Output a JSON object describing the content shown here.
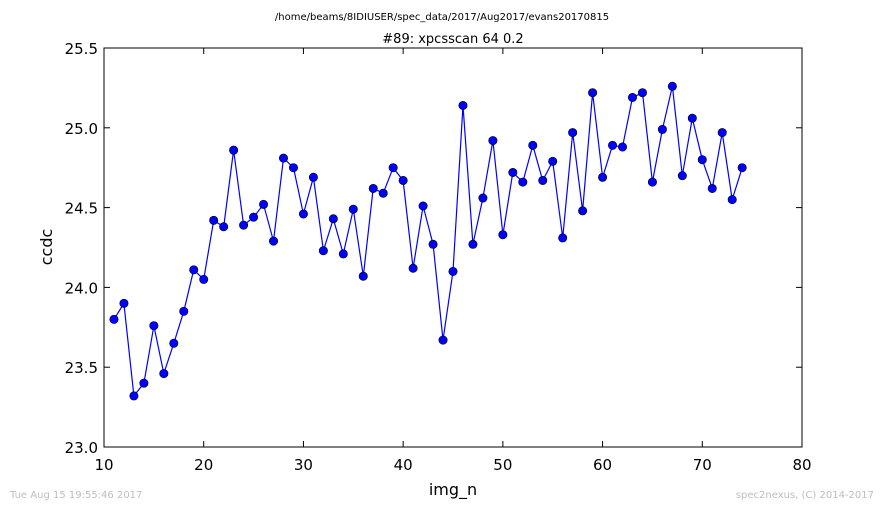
{
  "header": {
    "path": "/home/beams/8IDIUSER/spec_data/2017/Aug2017/evans20170815"
  },
  "footer": {
    "timestamp": "Tue Aug 15 19:55:46 2017",
    "credit": "spec2nexus, (C) 2014-2017"
  },
  "chart_data": {
    "type": "line",
    "title": "#89: xpcsscan 64 0.2",
    "xlabel": "img_n",
    "ylabel": "ccdc",
    "xlim": [
      10,
      80
    ],
    "ylim": [
      23.0,
      25.5
    ],
    "xticks": [
      "10",
      "20",
      "30",
      "40",
      "50",
      "60",
      "70",
      "80"
    ],
    "yticks": [
      "23.0",
      "23.5",
      "24.0",
      "24.5",
      "25.0",
      "25.5"
    ],
    "grid": false,
    "line_color": "#0000ff",
    "marker": "circle",
    "x": [
      11,
      12,
      13,
      14,
      15,
      16,
      17,
      18,
      19,
      20,
      21,
      22,
      23,
      24,
      25,
      26,
      27,
      28,
      29,
      30,
      31,
      32,
      33,
      34,
      35,
      36,
      37,
      38,
      39,
      40,
      41,
      42,
      43,
      44,
      45,
      46,
      47,
      48,
      49,
      50,
      51,
      52,
      53,
      54,
      55,
      56,
      57,
      58,
      59,
      60,
      61,
      62,
      63,
      64,
      65,
      66,
      67,
      68,
      69,
      70,
      71,
      72,
      73,
      74
    ],
    "y": [
      23.8,
      23.9,
      23.32,
      23.4,
      23.76,
      23.46,
      23.65,
      23.85,
      24.11,
      24.05,
      24.42,
      24.38,
      24.86,
      24.39,
      24.44,
      24.52,
      24.29,
      24.81,
      24.75,
      24.46,
      24.69,
      24.23,
      24.43,
      24.21,
      24.49,
      24.07,
      24.62,
      24.59,
      24.75,
      24.67,
      24.12,
      24.51,
      24.27,
      23.67,
      24.1,
      25.14,
      24.27,
      24.56,
      24.92,
      24.33,
      24.72,
      24.66,
      24.89,
      24.67,
      24.79,
      24.31,
      24.97,
      24.48,
      25.22,
      24.69,
      24.89,
      24.88,
      25.19,
      25.22,
      24.66,
      24.99,
      25.26,
      24.7,
      25.06,
      24.8,
      24.62,
      24.97,
      24.55,
      24.75
    ]
  }
}
